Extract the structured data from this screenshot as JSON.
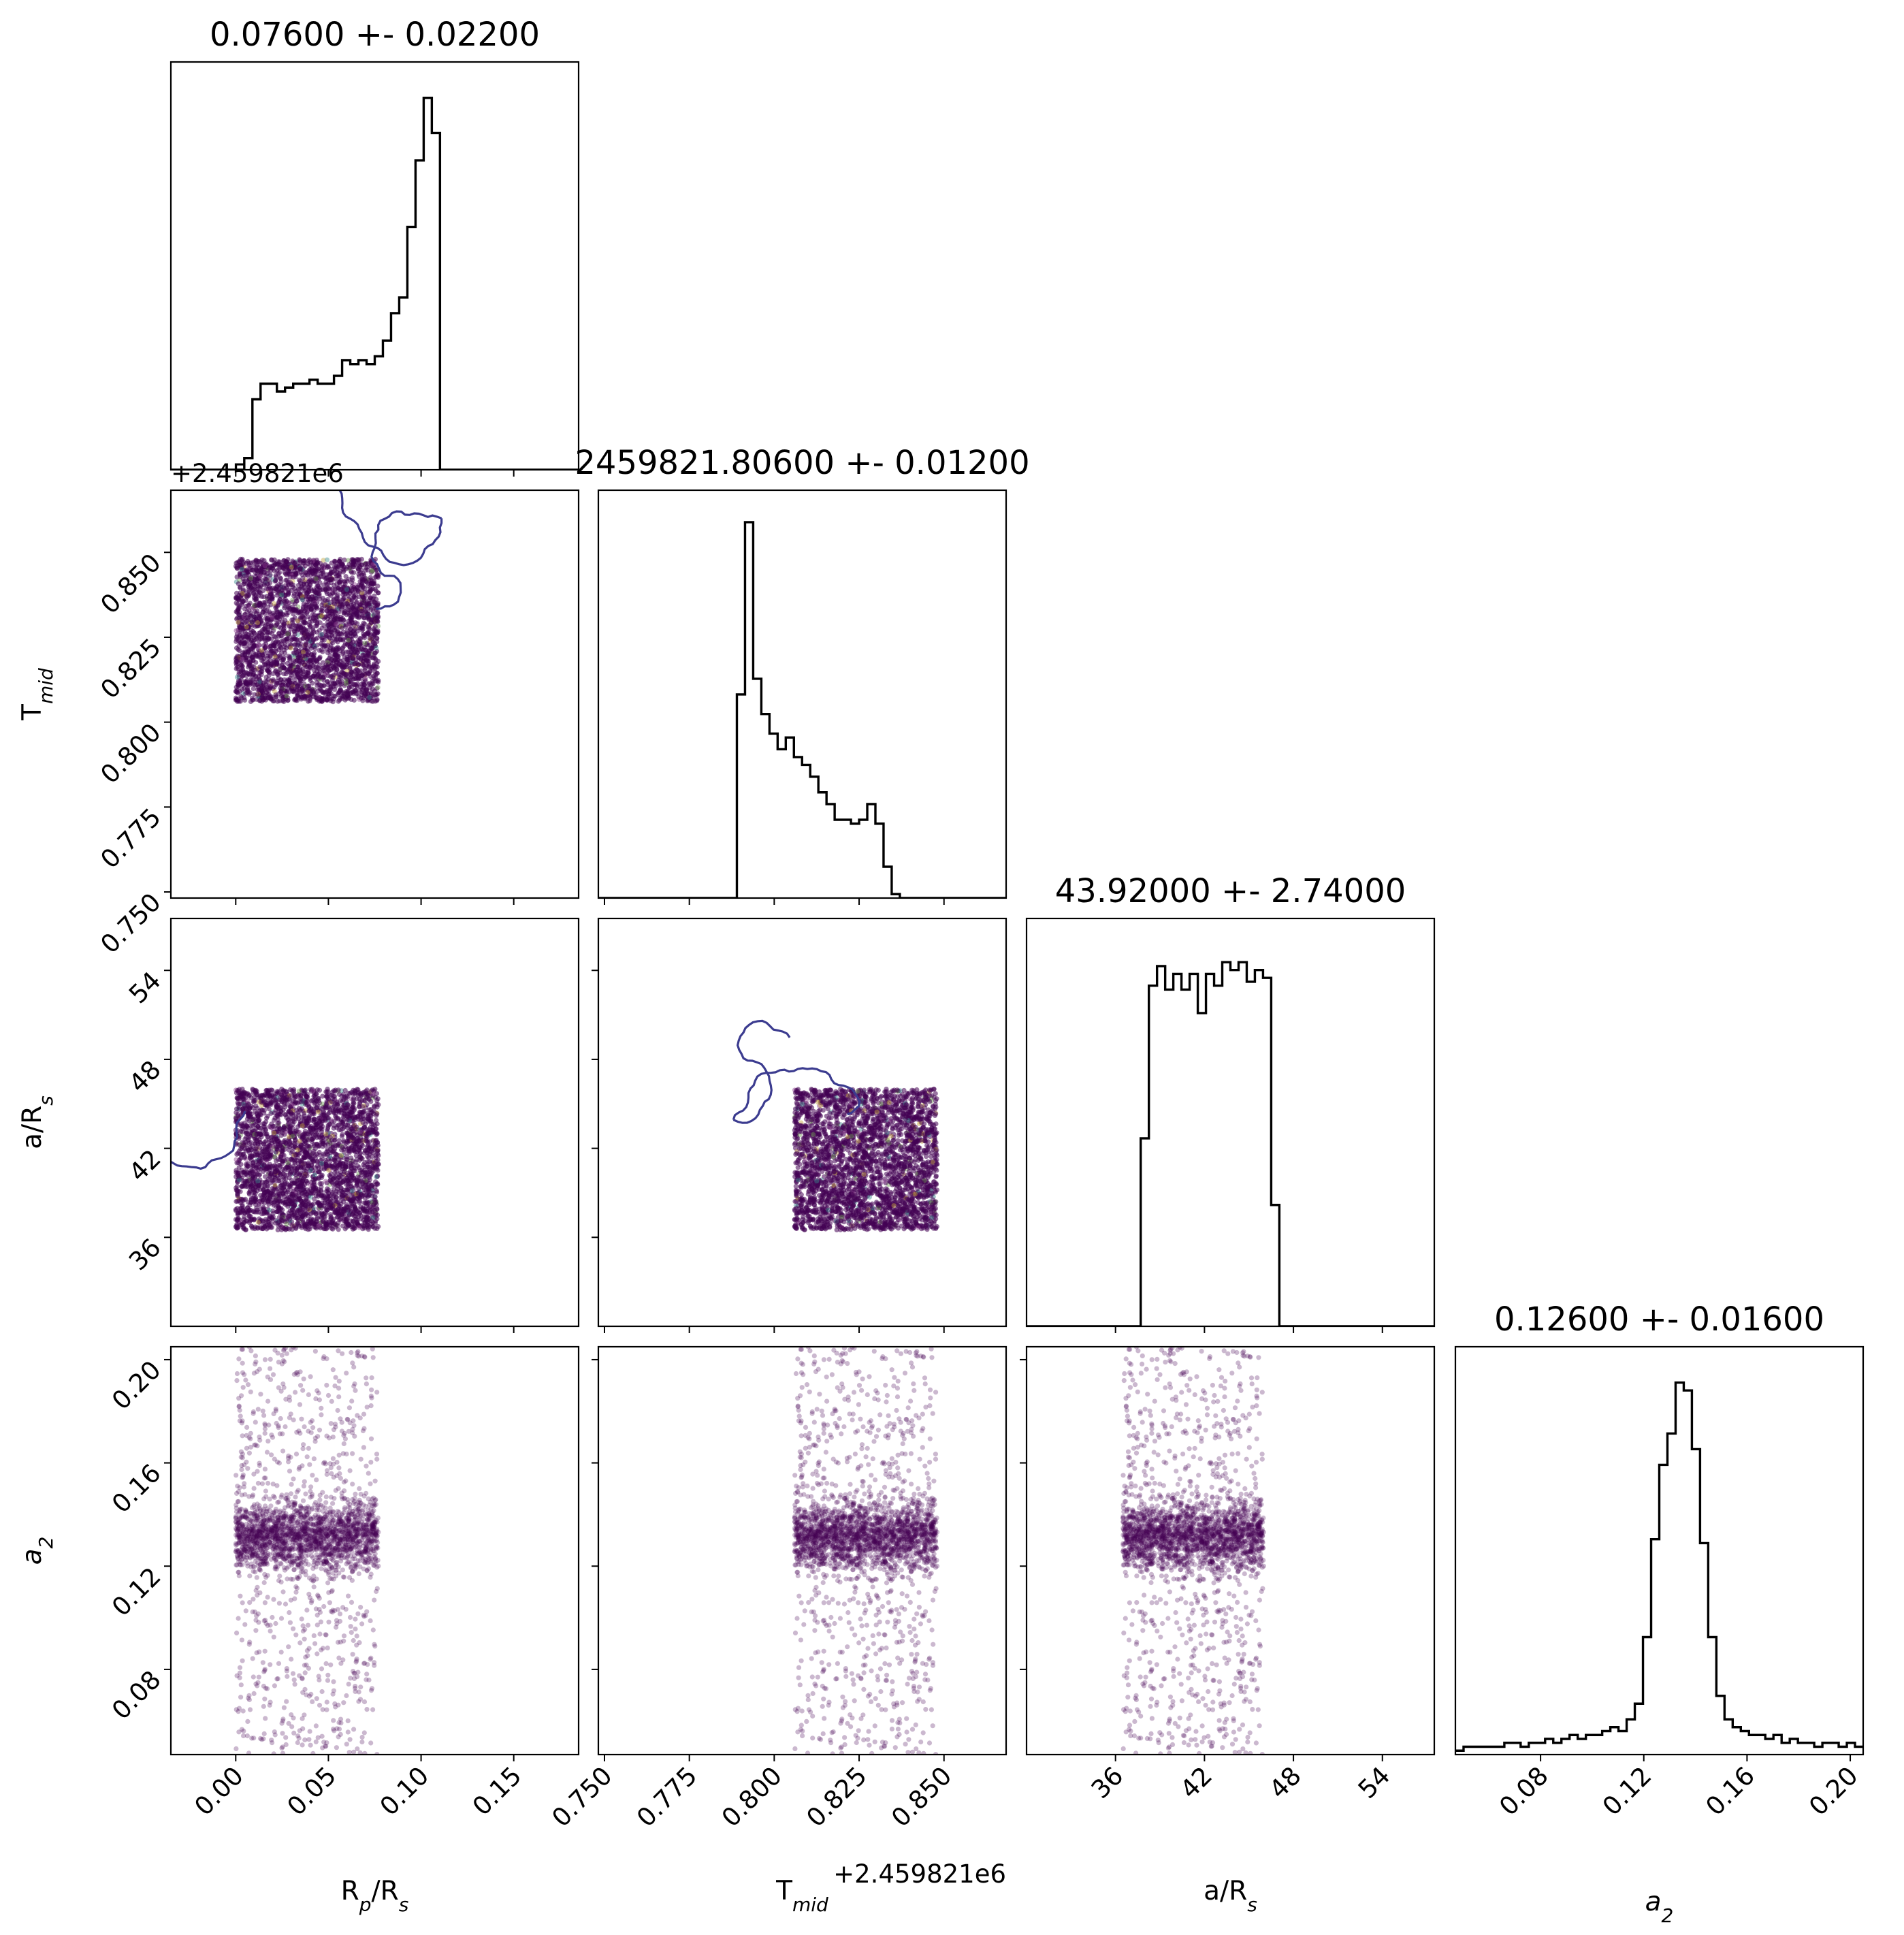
{
  "chart_data": {
    "type": "corner",
    "parameters": [
      {
        "key": "rp",
        "label_main": "R",
        "label_sub": "p",
        "label_tail": "/R",
        "label_sub2": "s",
        "range": [
          -0.035,
          0.185
        ],
        "ticks": [
          0.0,
          0.05,
          0.1,
          0.15
        ],
        "tick_labels": [
          "0.00",
          "0.05",
          "0.10",
          "0.15"
        ]
      },
      {
        "key": "tmid",
        "label_main": "T",
        "label_sub": "mid",
        "label_tail": "",
        "label_sub2": "",
        "range": [
          2459821.7482,
          2459821.8683
        ],
        "ticks": [
          2459821.75,
          2459821.775,
          2459821.8,
          2459821.825,
          2459821.85
        ],
        "tick_labels": [
          "0.750",
          "0.775",
          "0.800",
          "0.825",
          "0.850"
        ],
        "offset_label": "+2.459821e6"
      },
      {
        "key": "ars",
        "label_main": "a/R",
        "label_sub": "s",
        "label_tail": "",
        "label_sub2": "",
        "range": [
          30.0,
          57.5
        ],
        "ticks": [
          36,
          42,
          48,
          54
        ],
        "tick_labels": [
          "36",
          "42",
          "48",
          "54"
        ]
      },
      {
        "key": "a2",
        "label_main": "a",
        "label_sub": "2",
        "label_tail": "",
        "label_sub2": "",
        "italic": true,
        "range": [
          0.047,
          0.205
        ],
        "ticks": [
          0.08,
          0.12,
          0.16,
          0.2
        ],
        "tick_labels": [
          "0.08",
          "0.12",
          "0.16",
          "0.20"
        ]
      }
    ],
    "titles": [
      "0.07600 +- 0.02200",
      "2459821.80600 +- 0.01200",
      "43.92000 +- 2.74000",
      "0.12600 +- 0.01600"
    ],
    "histograms": [
      {
        "bin_start": -0.035,
        "bin_width": 0.0044,
        "counts": [
          0,
          0,
          0,
          0,
          0,
          0,
          0,
          0,
          0,
          0.03,
          0.18,
          0.22,
          0.22,
          0.2,
          0.21,
          0.22,
          0.22,
          0.23,
          0.22,
          0.22,
          0.24,
          0.28,
          0.27,
          0.28,
          0.27,
          0.29,
          0.33,
          0.4,
          0.44,
          0.62,
          0.79,
          0.95,
          0.86,
          0,
          0,
          0,
          0,
          0,
          0,
          0,
          0,
          0,
          0,
          0,
          0,
          0,
          0,
          0,
          0,
          0
        ]
      },
      {
        "bin_start": 2459821.7482,
        "bin_width": 0.0024,
        "counts": [
          0,
          0,
          0,
          0,
          0,
          0,
          0,
          0,
          0,
          0,
          0,
          0,
          0,
          0,
          0,
          0,
          0,
          0.52,
          0.96,
          0.56,
          0.47,
          0.42,
          0.38,
          0.41,
          0.36,
          0.34,
          0.31,
          0.27,
          0.24,
          0.2,
          0.2,
          0.19,
          0.2,
          0.24,
          0.19,
          0.08,
          0.01,
          0,
          0,
          0,
          0,
          0,
          0,
          0,
          0,
          0,
          0,
          0,
          0,
          0
        ]
      },
      {
        "bin_start": 30.0,
        "bin_width": 0.55,
        "counts": [
          0,
          0,
          0,
          0,
          0,
          0,
          0,
          0,
          0,
          0,
          0,
          0,
          0,
          0,
          0.48,
          0.87,
          0.92,
          0.86,
          0.9,
          0.86,
          0.9,
          0.8,
          0.9,
          0.87,
          0.93,
          0.91,
          0.93,
          0.88,
          0.91,
          0.89,
          0.31,
          0,
          0,
          0,
          0,
          0,
          0,
          0,
          0,
          0,
          0,
          0,
          0,
          0,
          0,
          0,
          0,
          0,
          0,
          0
        ]
      },
      {
        "bin_start": 0.047,
        "bin_width": 0.00316,
        "counts": [
          0.01,
          0.02,
          0.02,
          0.02,
          0.02,
          0.02,
          0.03,
          0.03,
          0.02,
          0.03,
          0.03,
          0.04,
          0.03,
          0.04,
          0.05,
          0.04,
          0.05,
          0.05,
          0.06,
          0.07,
          0.06,
          0.09,
          0.13,
          0.3,
          0.55,
          0.74,
          0.82,
          0.95,
          0.93,
          0.78,
          0.54,
          0.3,
          0.15,
          0.09,
          0.07,
          0.06,
          0.05,
          0.05,
          0.04,
          0.05,
          0.03,
          0.04,
          0.03,
          0.03,
          0.02,
          0.03,
          0.03,
          0.02,
          0.03,
          0.02
        ]
      }
    ],
    "sample_boxes": {
      "rp": [
        0.0,
        0.077
      ],
      "tmid": [
        2459821.806,
        2459821.848
      ],
      "ars": [
        36.5,
        46.0
      ],
      "a2_core": [
        0.118,
        0.145
      ]
    },
    "colors": {
      "points": "#440154",
      "contour": "#3b3b8f",
      "line": "#000000",
      "background": "#ffffff"
    }
  }
}
